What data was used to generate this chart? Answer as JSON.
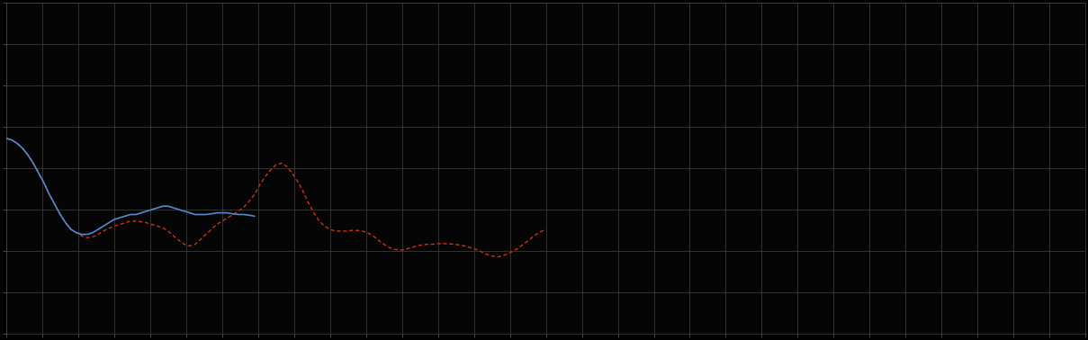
{
  "background_color": "#000000",
  "plot_bg_color": "#050505",
  "grid_color": "#444444",
  "line1_color": "#5588cc",
  "line2_color": "#cc3311",
  "figsize": [
    12.09,
    3.78
  ],
  "dpi": 100,
  "xlim": [
    0,
    100
  ],
  "ylim": [
    0,
    10
  ],
  "n_x_gridlines": 30,
  "n_y_gridlines": 8,
  "blue_x": [
    0.0,
    0.5,
    1.0,
    1.5,
    2.0,
    2.5,
    3.0,
    3.5,
    4.0,
    4.5,
    5.0,
    5.5,
    6.0,
    6.5,
    7.0,
    7.5,
    8.0,
    8.5,
    9.0,
    9.5,
    10.0,
    10.5,
    11.0,
    11.5,
    12.0,
    12.5,
    13.0,
    13.5,
    14.0,
    14.5,
    15.0,
    15.5,
    16.0,
    16.5,
    17.0,
    17.5,
    18.0,
    18.5,
    19.0,
    19.5,
    20.0,
    20.5,
    21.0,
    21.5,
    22.0,
    22.5,
    23.0
  ],
  "blue_y": [
    5.9,
    5.85,
    5.75,
    5.6,
    5.4,
    5.15,
    4.85,
    4.55,
    4.2,
    3.9,
    3.6,
    3.35,
    3.15,
    3.05,
    3.0,
    3.0,
    3.05,
    3.15,
    3.25,
    3.35,
    3.45,
    3.5,
    3.55,
    3.6,
    3.6,
    3.65,
    3.7,
    3.75,
    3.8,
    3.85,
    3.85,
    3.8,
    3.75,
    3.7,
    3.65,
    3.6,
    3.6,
    3.6,
    3.62,
    3.65,
    3.65,
    3.65,
    3.62,
    3.6,
    3.6,
    3.58,
    3.55
  ],
  "red_x": [
    0.0,
    0.5,
    1.0,
    1.5,
    2.0,
    2.5,
    3.0,
    3.5,
    4.0,
    4.5,
    5.0,
    5.5,
    6.0,
    6.5,
    7.0,
    7.5,
    8.0,
    8.5,
    9.0,
    9.5,
    10.0,
    10.5,
    11.0,
    11.5,
    12.0,
    12.5,
    13.0,
    13.5,
    14.0,
    14.5,
    15.0,
    15.5,
    16.0,
    16.5,
    17.0,
    17.5,
    18.0,
    18.5,
    19.0,
    19.5,
    20.0,
    20.5,
    21.0,
    21.5,
    22.0,
    22.5,
    23.0,
    23.5,
    24.0,
    24.5,
    25.0,
    25.5,
    26.0,
    26.5,
    27.0,
    27.5,
    28.0,
    28.5,
    29.0,
    29.5,
    30.0,
    30.5,
    31.0,
    31.5,
    32.0,
    32.5,
    33.0,
    33.5,
    34.0,
    34.5,
    35.0,
    35.5,
    36.0,
    36.5,
    37.0,
    37.5,
    38.0,
    38.5,
    39.0,
    39.5,
    40.0,
    40.5,
    41.0,
    41.5,
    42.0,
    42.5,
    43.0,
    43.5,
    44.0,
    44.5,
    45.0,
    45.5,
    46.0,
    46.5,
    47.0,
    47.5,
    48.0,
    48.5,
    49.0,
    49.5,
    50.0
  ],
  "red_y": [
    5.9,
    5.85,
    5.75,
    5.6,
    5.4,
    5.15,
    4.85,
    4.55,
    4.2,
    3.9,
    3.6,
    3.35,
    3.15,
    3.05,
    2.95,
    2.9,
    2.92,
    3.0,
    3.1,
    3.18,
    3.25,
    3.3,
    3.35,
    3.4,
    3.4,
    3.38,
    3.35,
    3.3,
    3.25,
    3.2,
    3.1,
    2.95,
    2.82,
    2.7,
    2.65,
    2.7,
    2.85,
    3.0,
    3.15,
    3.3,
    3.4,
    3.5,
    3.6,
    3.7,
    3.82,
    4.0,
    4.2,
    4.5,
    4.75,
    4.95,
    5.1,
    5.15,
    5.05,
    4.85,
    4.6,
    4.3,
    3.95,
    3.65,
    3.4,
    3.25,
    3.15,
    3.1,
    3.1,
    3.1,
    3.12,
    3.12,
    3.1,
    3.05,
    2.95,
    2.82,
    2.7,
    2.6,
    2.55,
    2.52,
    2.55,
    2.6,
    2.65,
    2.68,
    2.7,
    2.7,
    2.72,
    2.72,
    2.72,
    2.7,
    2.68,
    2.65,
    2.6,
    2.55,
    2.48,
    2.4,
    2.35,
    2.32,
    2.35,
    2.42,
    2.5,
    2.6,
    2.72,
    2.85,
    2.98,
    3.08,
    3.15
  ]
}
